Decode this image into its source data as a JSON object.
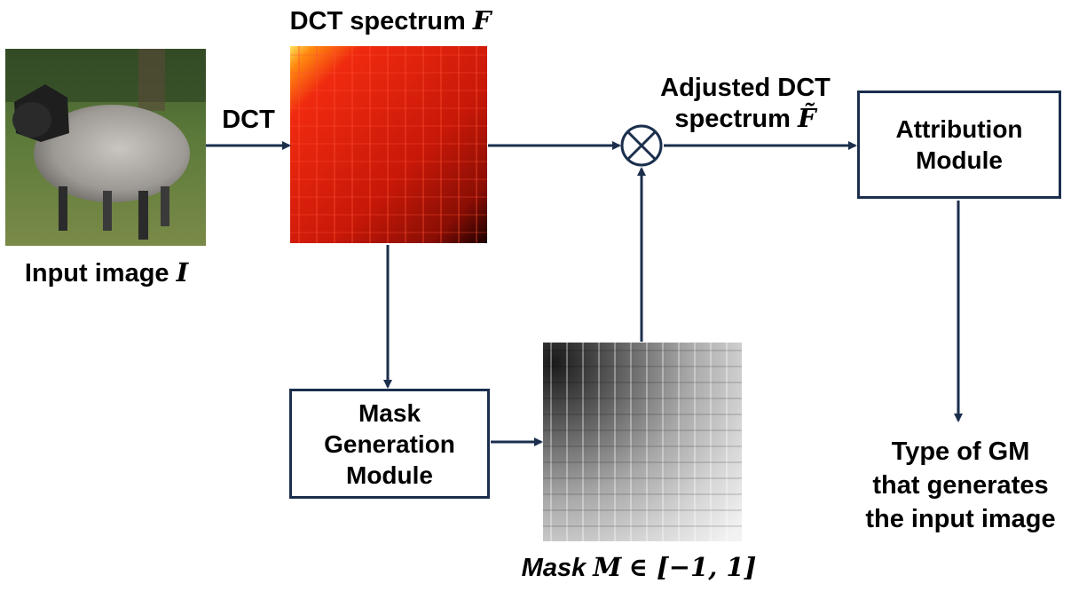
{
  "input_image": {
    "label": "Input image",
    "symbol": "I",
    "picture": "sheep-photo"
  },
  "dct_edge": {
    "label": "DCT"
  },
  "dct_spectrum": {
    "label": "DCT spectrum",
    "symbol": "F",
    "picture": "red-heatmap"
  },
  "multiply_node": {
    "icon": "circled-times-icon"
  },
  "adjusted_spectrum": {
    "line1": "Adjusted DCT",
    "line2": "spectrum",
    "symbol": "F̃"
  },
  "attribution_module": {
    "line1": "Attribution",
    "line2": "Module"
  },
  "mask_generation_module": {
    "line1": "Mask",
    "line2": "Generation",
    "line3": "Module"
  },
  "mask": {
    "label_word": "Mask",
    "symbol": "M",
    "range": "∈ [−1, 1]",
    "picture": "grayscale-mask"
  },
  "output": {
    "line1": "Type of GM",
    "line2": "that generates",
    "line3": "the input image"
  },
  "colors": {
    "arrow": "#1b2f4d",
    "box_border": "#1b2f4d"
  }
}
